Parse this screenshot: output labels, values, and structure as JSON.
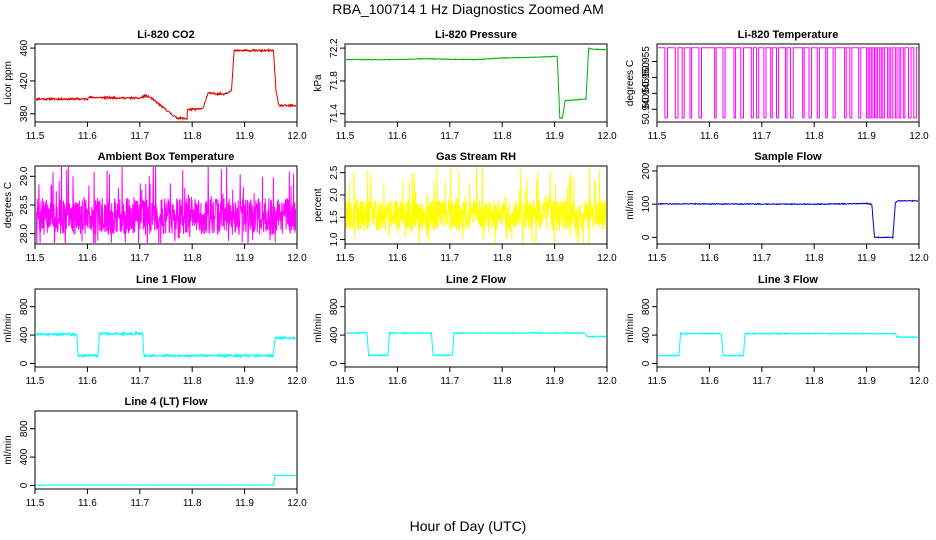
{
  "page": {
    "title": "RBA_100714  1 Hz Diagnostics Zoomed AM",
    "x_axis_label": "Hour of Day (UTC)"
  },
  "chart_data": [
    {
      "type": "line",
      "title": "Li-820 CO2",
      "ylabel": "Licor ppm",
      "color": "#e00000",
      "xlim": [
        11.5,
        12.0
      ],
      "ylim": [
        370,
        465
      ],
      "xticks": [
        "11.5",
        "11.6",
        "11.7",
        "11.8",
        "11.9",
        "12.0"
      ],
      "xtick_values": [
        11.5,
        11.6,
        11.7,
        11.8,
        11.9,
        12.0
      ],
      "yticks": [
        "380",
        "420",
        "460"
      ],
      "ytick_values": [
        380,
        420,
        460
      ],
      "noise": 1.2,
      "series": [
        {
          "name": "CO2",
          "x": [
            11.5,
            11.6,
            11.6,
            11.7,
            11.71,
            11.72,
            11.77,
            11.79,
            11.79,
            11.82,
            11.83,
            11.86,
            11.875,
            11.88,
            11.955,
            11.96,
            11.965,
            12.0
          ],
          "values": [
            398,
            398,
            400,
            399,
            402,
            400,
            375,
            374,
            385,
            386,
            405,
            404,
            408,
            457,
            457,
            408,
            390,
            390
          ]
        }
      ]
    },
    {
      "type": "line",
      "title": "Li-820 Pressure",
      "ylabel": "kPa",
      "color": "#00b000",
      "xlim": [
        11.5,
        12.0
      ],
      "ylim": [
        71.3,
        72.25
      ],
      "xticks": [
        "11.5",
        "11.6",
        "11.7",
        "11.8",
        "11.9",
        "12.0"
      ],
      "xtick_values": [
        11.5,
        11.6,
        11.7,
        11.8,
        11.9,
        12.0
      ],
      "yticks": [
        "71.4",
        "71.8",
        "72.2"
      ],
      "ytick_values": [
        71.4,
        71.8,
        72.2
      ],
      "noise": 0.004,
      "series": [
        {
          "name": "Pressure",
          "x": [
            11.5,
            11.6,
            11.65,
            11.75,
            11.8,
            11.87,
            11.905,
            11.91,
            11.915,
            11.92,
            11.96,
            11.965,
            11.97,
            12.0
          ],
          "values": [
            72.06,
            72.06,
            72.07,
            72.06,
            72.08,
            72.09,
            72.1,
            71.35,
            71.35,
            71.56,
            71.58,
            72.2,
            72.19,
            72.18
          ]
        }
      ]
    },
    {
      "type": "line",
      "title": "Li-820 Temperature",
      "ylabel": "degrees C",
      "color": "#ff00ff",
      "xlim": [
        11.5,
        12.0
      ],
      "ylim": [
        50.936,
        50.9605
      ],
      "xticks": [
        "11.5",
        "11.6",
        "11.7",
        "11.8",
        "11.9",
        "12.0"
      ],
      "xtick_values": [
        11.5,
        11.6,
        11.7,
        11.8,
        11.9,
        12.0
      ],
      "yticks": [
        "50.940",
        "50.945",
        "50.950",
        "50.955"
      ],
      "ytick_values": [
        50.94,
        50.945,
        50.95,
        50.955
      ],
      "levels": [
        50.9373,
        50.9593
      ],
      "switch_times": [
        11.515,
        11.52,
        11.535,
        11.54,
        11.548,
        11.552,
        11.563,
        11.566,
        11.58,
        11.585,
        11.61,
        11.613,
        11.626,
        11.63,
        11.647,
        11.65,
        11.66,
        11.665,
        11.68,
        11.684,
        11.69,
        11.694,
        11.704,
        11.708,
        11.717,
        11.72,
        11.728,
        11.732,
        11.745,
        11.748,
        11.755,
        11.76,
        11.778,
        11.781,
        11.79,
        11.795,
        11.806,
        11.81,
        11.822,
        11.825,
        11.836,
        11.84,
        11.858,
        11.861,
        11.868,
        11.872,
        11.885,
        11.889,
        11.9,
        11.903,
        11.906,
        11.909,
        11.912,
        11.915,
        11.918,
        11.921,
        11.925,
        11.928,
        11.931,
        11.934,
        11.94,
        11.943,
        11.946,
        11.95,
        11.955,
        11.958,
        11.962,
        11.965,
        11.97,
        11.973,
        11.98,
        11.985,
        11.99,
        11.995
      ]
    },
    {
      "type": "line",
      "title": "Ambient Box Temperature",
      "ylabel": "degrees C",
      "color": "#ff00ff",
      "xlim": [
        11.5,
        12.0
      ],
      "ylim": [
        27.82,
        29.18
      ],
      "xticks": [
        "11.5",
        "11.6",
        "11.7",
        "11.8",
        "11.9",
        "12.0"
      ],
      "xtick_values": [
        11.5,
        11.6,
        11.7,
        11.8,
        11.9,
        12.0
      ],
      "yticks": [
        "28.0",
        "28.5",
        "29.0"
      ],
      "ytick_values": [
        28.0,
        28.5,
        29.0
      ],
      "noise_series": {
        "center": 28.3,
        "amplitude": 0.32,
        "spike": 0.8,
        "seed": 7
      }
    },
    {
      "type": "line",
      "title": "Gas Stream RH",
      "ylabel": "percent",
      "color": "#ffff00",
      "xlim": [
        11.5,
        12.0
      ],
      "ylim": [
        0.9,
        2.65
      ],
      "xticks": [
        "11.5",
        "11.6",
        "11.7",
        "11.8",
        "11.9",
        "12.0"
      ],
      "xtick_values": [
        11.5,
        11.6,
        11.7,
        11.8,
        11.9,
        12.0
      ],
      "yticks": [
        "1.0",
        "1.5",
        "2.0",
        "2.5"
      ],
      "ytick_values": [
        1.0,
        1.5,
        2.0,
        2.5
      ],
      "noise_series": {
        "center": 1.55,
        "amplitude": 0.35,
        "spike": 1.0,
        "seed": 13
      }
    },
    {
      "type": "line",
      "title": "Sample Flow",
      "ylabel": "ml/min",
      "color": "#0000cc",
      "xlim": [
        11.5,
        12.0
      ],
      "ylim": [
        -20,
        215
      ],
      "xticks": [
        "11.5",
        "11.6",
        "11.7",
        "11.8",
        "11.9",
        "12.0"
      ],
      "xtick_values": [
        11.5,
        11.6,
        11.7,
        11.8,
        11.9,
        12.0
      ],
      "yticks": [
        "0",
        "100",
        "200"
      ],
      "ytick_values": [
        0,
        100,
        200
      ],
      "noise": 1.2,
      "series": [
        {
          "name": "Sample Flow",
          "x": [
            11.5,
            11.8,
            11.9,
            11.91,
            11.915,
            11.95,
            11.955,
            11.96,
            12.0
          ],
          "values": [
            101,
            100,
            102,
            100,
            0,
            0,
            105,
            110,
            110
          ]
        }
      ]
    },
    {
      "type": "line",
      "title": "Line 1 Flow",
      "ylabel": "ml/min",
      "color": "#00ffff",
      "xlim": [
        11.5,
        12.0
      ],
      "ylim": [
        -50,
        1050
      ],
      "xticks": [
        "11.5",
        "11.6",
        "11.7",
        "11.8",
        "11.9",
        "12.0"
      ],
      "xtick_values": [
        11.5,
        11.6,
        11.7,
        11.8,
        11.9,
        12.0
      ],
      "yticks": [
        "0",
        "400",
        "800"
      ],
      "ytick_values": [
        0,
        400,
        800
      ],
      "noise": 18,
      "series": [
        {
          "name": "Line 1",
          "x": [
            11.5,
            11.58,
            11.582,
            11.62,
            11.623,
            11.705,
            11.708,
            11.955,
            11.958,
            12.0
          ],
          "values": [
            410,
            410,
            110,
            110,
            420,
            420,
            110,
            110,
            360,
            360
          ]
        }
      ]
    },
    {
      "type": "line",
      "title": "Line 2 Flow",
      "ylabel": "ml/min",
      "color": "#00ffff",
      "xlim": [
        11.5,
        12.0
      ],
      "ylim": [
        -50,
        1050
      ],
      "xticks": [
        "11.5",
        "11.6",
        "11.7",
        "11.8",
        "11.9",
        "12.0"
      ],
      "xtick_values": [
        11.5,
        11.6,
        11.7,
        11.8,
        11.9,
        12.0
      ],
      "yticks": [
        "0",
        "400",
        "800"
      ],
      "ytick_values": [
        0,
        400,
        800
      ],
      "noise": 8,
      "series": [
        {
          "name": "Line 2",
          "x": [
            11.5,
            11.542,
            11.545,
            11.582,
            11.585,
            11.665,
            11.668,
            11.705,
            11.708,
            11.958,
            11.962,
            12.0
          ],
          "values": [
            430,
            430,
            115,
            115,
            430,
            430,
            115,
            115,
            430,
            430,
            380,
            380
          ]
        }
      ]
    },
    {
      "type": "line",
      "title": "Line 3 Flow",
      "ylabel": "ml/min",
      "color": "#00ffff",
      "xlim": [
        11.5,
        12.0
      ],
      "ylim": [
        -50,
        1050
      ],
      "xticks": [
        "11.5",
        "11.6",
        "11.7",
        "11.8",
        "11.9",
        "12.0"
      ],
      "xtick_values": [
        11.5,
        11.6,
        11.7,
        11.8,
        11.9,
        12.0
      ],
      "yticks": [
        "0",
        "400",
        "800"
      ],
      "ytick_values": [
        0,
        400,
        800
      ],
      "noise": 8,
      "series": [
        {
          "name": "Line 3",
          "x": [
            11.5,
            11.542,
            11.545,
            11.623,
            11.626,
            11.665,
            11.668,
            11.955,
            11.958,
            12.0
          ],
          "values": [
            110,
            110,
            420,
            420,
            110,
            110,
            420,
            420,
            370,
            370
          ]
        }
      ]
    },
    {
      "type": "line",
      "title": "Line 4 (LT) Flow",
      "ylabel": "ml/min",
      "color": "#00ffff",
      "xlim": [
        11.5,
        12.0
      ],
      "ylim": [
        -50,
        1050
      ],
      "xticks": [
        "11.5",
        "11.6",
        "11.7",
        "11.8",
        "11.9",
        "12.0"
      ],
      "xtick_values": [
        11.5,
        11.6,
        11.7,
        11.8,
        11.9,
        12.0
      ],
      "yticks": [
        "0",
        "400",
        "800"
      ],
      "ytick_values": [
        0,
        400,
        800
      ],
      "noise": 3,
      "series": [
        {
          "name": "Line 4",
          "x": [
            11.5,
            11.955,
            11.958,
            11.96,
            12.0
          ],
          "values": [
            5,
            5,
            150,
            140,
            140
          ]
        }
      ]
    }
  ]
}
